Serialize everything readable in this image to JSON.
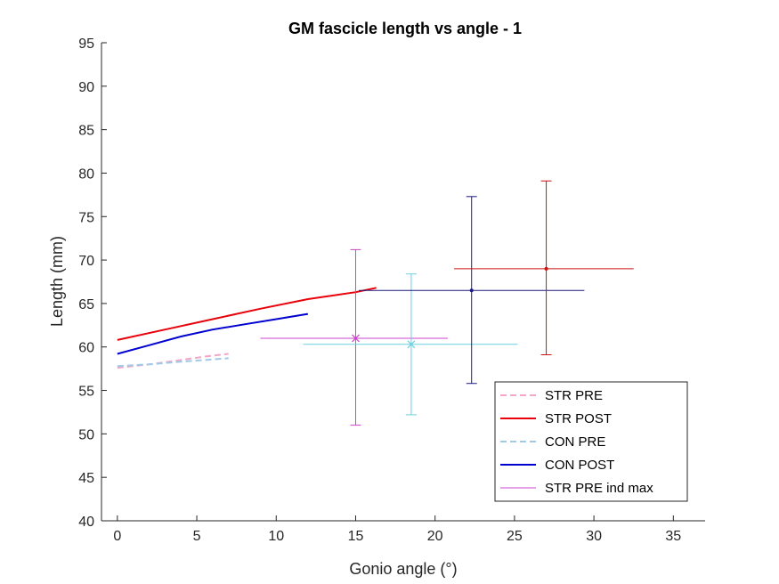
{
  "chart_data": {
    "type": "line",
    "title": "GM fascicle length vs angle - 1",
    "xlabel": "Gonio angle (°)",
    "ylabel": "Length (mm)",
    "xlim": [
      -1,
      37
    ],
    "ylim": [
      40,
      95
    ],
    "xticks": [
      0,
      5,
      10,
      15,
      20,
      25,
      30,
      35
    ],
    "yticks": [
      40,
      45,
      50,
      55,
      60,
      65,
      70,
      75,
      80,
      85,
      90,
      95
    ],
    "grid": false,
    "legend_position": "bottom-right",
    "series": [
      {
        "name": "STR PRE",
        "style": "dashed",
        "color": "#f4a6c8",
        "x": [
          0,
          2,
          4,
          5.5,
          7
        ],
        "y": [
          57.6,
          58.0,
          58.5,
          58.9,
          59.2
        ]
      },
      {
        "name": "STR POST",
        "style": "solid",
        "color": "#e8000b",
        "x": [
          0,
          3,
          6,
          9,
          12,
          15,
          16.3
        ],
        "y": [
          60.8,
          62.0,
          63.2,
          64.4,
          65.5,
          66.3,
          66.8
        ]
      },
      {
        "name": "CON PRE",
        "style": "dashed",
        "color": "#9ecae8",
        "x": [
          0,
          2,
          4,
          5.5,
          7
        ],
        "y": [
          57.8,
          58.0,
          58.3,
          58.5,
          58.7
        ]
      },
      {
        "name": "CON POST",
        "style": "solid",
        "color": "#0000d0",
        "x": [
          0,
          2,
          4,
          6,
          8,
          10,
          12
        ],
        "y": [
          59.2,
          60.2,
          61.2,
          62.0,
          62.6,
          63.2,
          63.8
        ]
      },
      {
        "name": "STR PRE ind max",
        "style": "errorbar",
        "color": "#cc44cc"
      }
    ],
    "error_markers": [
      {
        "color": "#cc44cc",
        "marker": "x",
        "x": 15.0,
        "y": 61.0,
        "xerr": [
          9.0,
          20.8
        ],
        "yerr": [
          51.0,
          71.2
        ]
      },
      {
        "color": "#6ad0e0",
        "marker": "x",
        "x": 18.5,
        "y": 60.3,
        "xerr": [
          11.7,
          25.2
        ],
        "yerr": [
          52.2,
          68.4
        ]
      },
      {
        "color": "#1a1a80",
        "marker": "dot",
        "x": 22.3,
        "y": 66.5,
        "xerr": [
          15.2,
          29.4
        ],
        "yerr": [
          55.8,
          77.3
        ]
      },
      {
        "color": "#cc1111",
        "marker": "dot",
        "x": 27.0,
        "y": 69.0,
        "xerr": [
          21.2,
          32.5
        ],
        "yerr": [
          59.1,
          79.1
        ]
      }
    ]
  }
}
